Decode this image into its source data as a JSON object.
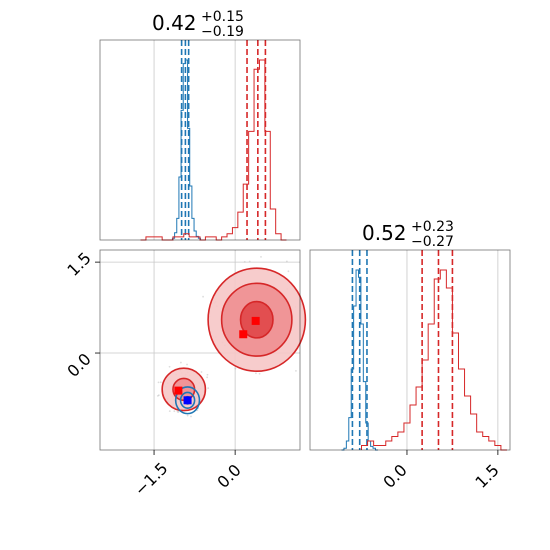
{
  "colors": {
    "blue": "#1f77b4",
    "red": "#d62728",
    "red_fill_1": "#f6c6c7",
    "red_fill_2": "#ee8f91",
    "red_fill_3": "#e04648",
    "marker_red": "#ff0000",
    "marker_blue": "#0000ff",
    "grid": "#c8c8c8"
  },
  "chart_data": {
    "type": "corner",
    "grid": true,
    "panels": [
      {
        "id": "hist_x",
        "type": "histogram",
        "title": {
          "value": "0.42",
          "plus": "+0.15",
          "minus": "−0.19"
        },
        "xlim": [
          -2.5,
          1.2
        ],
        "grid_x": [
          -1.5,
          0.0
        ],
        "series": [
          {
            "color_key": "blue",
            "quantile_lines": [
              -0.99,
              -0.92,
              -0.86
            ],
            "x": [
              -1.18,
              -1.14,
              -1.1,
              -1.06,
              -1.02,
              -0.98,
              -0.94,
              -0.9,
              -0.86,
              -0.82,
              -0.78,
              -0.74,
              -0.7,
              -0.66,
              -0.62
            ],
            "values": [
              0,
              1,
              4,
              12,
              35,
              72,
              98,
              100,
              62,
              30,
              12,
              5,
              2,
              1,
              0
            ]
          },
          {
            "color_key": "red",
            "quantile_lines": [
              0.22,
              0.42,
              0.56
            ],
            "x": [
              -1.7,
              -1.6,
              -1.5,
              -1.4,
              -1.3,
              -1.2,
              -1.1,
              -1.0,
              -0.9,
              -0.8,
              -0.7,
              -0.6,
              -0.5,
              -0.4,
              -0.3,
              -0.2,
              -0.1,
              0.0,
              0.1,
              0.2,
              0.3,
              0.4,
              0.5,
              0.6,
              0.7,
              0.8,
              0.9
            ],
            "values": [
              0,
              1,
              1,
              1,
              0,
              0,
              1,
              1,
              2,
              1,
              1,
              0,
              1,
              1,
              0,
              1,
              2,
              4,
              9,
              18,
              35,
              55,
              58,
              35,
              10,
              2,
              0
            ]
          }
        ]
      },
      {
        "id": "scatter_xy",
        "type": "2d-density",
        "xlim": [
          -2.5,
          1.2
        ],
        "ylim": [
          -1.6,
          1.7
        ],
        "grid_x": [
          -1.5,
          0.0
        ],
        "grid_y": [
          0.0,
          1.5
        ],
        "xticks": [
          "−1.5",
          "0.0"
        ],
        "yticks": [
          "0.0",
          "1.5"
        ],
        "clusters": [
          {
            "color_key": "red",
            "center": [
              0.4,
              0.55
            ],
            "levels": [
              {
                "rx": 0.9,
                "ry": 0.85
              },
              {
                "rx": 0.65,
                "ry": 0.6
              },
              {
                "rx": 0.3,
                "ry": 0.3
              }
            ]
          },
          {
            "color_key": "red",
            "center": [
              -0.95,
              -0.6
            ],
            "levels": [
              {
                "rx": 0.4,
                "ry": 0.35
              },
              {
                "rx": 0.2,
                "ry": 0.18
              }
            ]
          },
          {
            "color_key": "blue",
            "center": [
              -0.88,
              -0.78
            ],
            "levels": [
              {
                "rx": 0.22,
                "ry": 0.22
              },
              {
                "rx": 0.13,
                "ry": 0.13
              },
              {
                "rx": 0.06,
                "ry": 0.06
              }
            ]
          }
        ],
        "markers": [
          {
            "color_key": "marker_red",
            "x": 0.38,
            "y": 0.53
          },
          {
            "color_key": "marker_red",
            "x": 0.15,
            "y": 0.31
          },
          {
            "color_key": "marker_red",
            "x": -1.05,
            "y": -0.62
          },
          {
            "color_key": "marker_blue",
            "x": -0.88,
            "y": -0.78
          }
        ]
      },
      {
        "id": "hist_y",
        "type": "histogram",
        "title": {
          "value": "0.52",
          "plus": "+0.23",
          "minus": "−0.27"
        },
        "xlim": [
          -1.6,
          1.7
        ],
        "grid_x": [
          0.0,
          1.5
        ],
        "xticks": [
          "0.0",
          "1.5"
        ],
        "series": [
          {
            "color_key": "blue",
            "quantile_lines": [
              -0.9,
              -0.78,
              -0.66
            ],
            "x": [
              -1.06,
              -1.02,
              -0.98,
              -0.94,
              -0.9,
              -0.86,
              -0.82,
              -0.78,
              -0.74,
              -0.7,
              -0.66,
              -0.62,
              -0.58,
              -0.54,
              -0.5
            ],
            "values": [
              0,
              1,
              5,
              18,
              45,
              80,
              100,
              96,
              70,
              38,
              15,
              5,
              2,
              1,
              0
            ]
          },
          {
            "color_key": "red",
            "quantile_lines": [
              0.25,
              0.52,
              0.75
            ],
            "x": [
              -0.7,
              -0.6,
              -0.5,
              -0.4,
              -0.3,
              -0.2,
              -0.1,
              0.0,
              0.1,
              0.2,
              0.3,
              0.4,
              0.5,
              0.6,
              0.7,
              0.8,
              0.9,
              1.0,
              1.1,
              1.2,
              1.3,
              1.4,
              1.5,
              1.6
            ],
            "values": [
              1,
              2,
              1,
              1,
              2,
              3,
              4,
              6,
              10,
              14,
              20,
              28,
              38,
              40,
              36,
              26,
              18,
              12,
              8,
              4,
              3,
              2,
              1,
              0
            ]
          }
        ]
      }
    ]
  }
}
